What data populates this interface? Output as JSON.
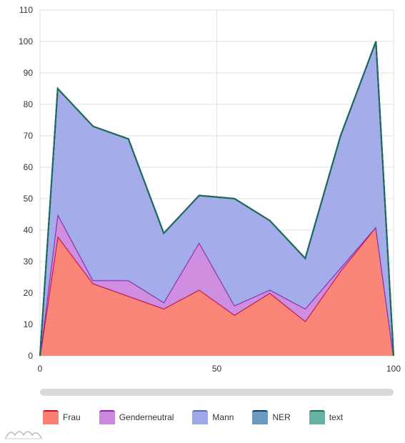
{
  "chart_data": {
    "type": "area",
    "stacked": true,
    "x": [
      0,
      5,
      15,
      25,
      35,
      45,
      55,
      65,
      75,
      85,
      95,
      100
    ],
    "xlim": [
      0,
      100
    ],
    "ylim": [
      0,
      110
    ],
    "x_ticks": [
      "0",
      "50",
      "100"
    ],
    "y_ticks": [
      "0",
      "10",
      "20",
      "30",
      "40",
      "50",
      "60",
      "70",
      "80",
      "90",
      "100",
      "110"
    ],
    "grid": true,
    "legend": "bottom",
    "series": [
      {
        "name": "Frau",
        "values": [
          0,
          38,
          23,
          19,
          15,
          21,
          13,
          20,
          11,
          27,
          41,
          0
        ],
        "line": "#c8102e",
        "fill": "#fa8072"
      },
      {
        "name": "Genderneutral",
        "values": [
          0,
          7,
          1,
          5,
          2,
          15,
          3,
          1,
          4,
          1,
          0,
          0
        ],
        "line": "#8e24aa",
        "fill": "#cc88dd"
      },
      {
        "name": "Mann",
        "values": [
          0,
          40,
          49,
          45,
          22,
          15,
          34,
          22,
          16,
          42,
          59,
          0
        ],
        "line": "#5c6bc0",
        "fill": "#9fa8e8"
      },
      {
        "name": "NER",
        "values": [
          0,
          0,
          0,
          0,
          0,
          0,
          0,
          0,
          0,
          0,
          0,
          0
        ],
        "line": "#0d3b66",
        "fill": "#6a9bc3"
      },
      {
        "name": "text",
        "values": [
          0,
          0,
          0,
          0,
          0,
          0,
          0,
          0,
          0,
          0,
          0,
          0
        ],
        "line": "#1b6e5a",
        "fill": "#66b3a1"
      }
    ]
  }
}
